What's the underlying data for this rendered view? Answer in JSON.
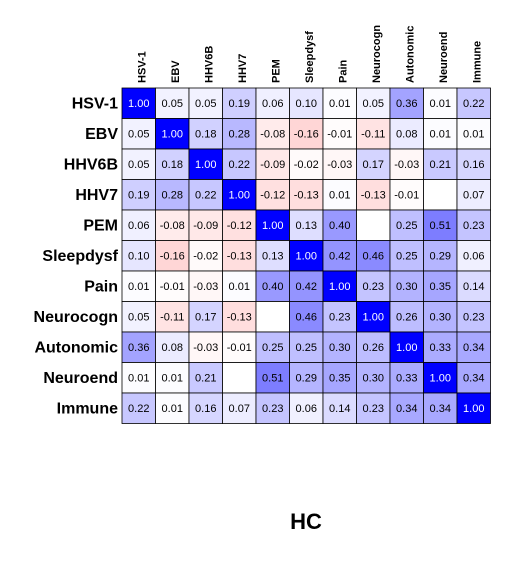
{
  "chart_data": {
    "type": "heatmap",
    "title": "HC",
    "x_categories": [
      "HSV-1",
      "EBV",
      "HHV6B",
      "HHV7",
      "PEM",
      "Sleepdysf",
      "Pain",
      "Neurocogn",
      "Autonomic",
      "Neuroend",
      "Immune"
    ],
    "y_categories": [
      "HSV-1",
      "EBV",
      "HHV6B",
      "HHV7",
      "PEM",
      "Sleepdysf",
      "Pain",
      "Neurocogn",
      "Autonomic",
      "Neuroend",
      "Immune"
    ],
    "values": [
      [
        1.0,
        0.05,
        0.05,
        0.19,
        0.06,
        0.1,
        0.01,
        0.05,
        0.36,
        0.01,
        0.22
      ],
      [
        0.05,
        1.0,
        0.18,
        0.28,
        -0.08,
        -0.16,
        -0.01,
        -0.11,
        0.08,
        0.01,
        0.01
      ],
      [
        0.05,
        0.18,
        1.0,
        0.22,
        -0.09,
        -0.02,
        -0.03,
        0.17,
        -0.03,
        0.21,
        0.16
      ],
      [
        0.19,
        0.28,
        0.22,
        1.0,
        -0.12,
        -0.13,
        0.01,
        -0.13,
        -0.01,
        null,
        0.07
      ],
      [
        0.06,
        -0.08,
        -0.09,
        -0.12,
        1.0,
        0.13,
        0.4,
        null,
        0.25,
        0.51,
        0.23
      ],
      [
        0.1,
        -0.16,
        -0.02,
        -0.13,
        0.13,
        1.0,
        0.42,
        0.46,
        0.25,
        0.29,
        0.06
      ],
      [
        0.01,
        -0.01,
        -0.03,
        0.01,
        0.4,
        0.42,
        1.0,
        0.23,
        0.3,
        0.35,
        0.14
      ],
      [
        0.05,
        -0.11,
        0.17,
        -0.13,
        null,
        0.46,
        0.23,
        1.0,
        0.26,
        0.3,
        0.23
      ],
      [
        0.36,
        0.08,
        -0.03,
        -0.01,
        0.25,
        0.25,
        0.3,
        0.26,
        1.0,
        0.33,
        0.34
      ],
      [
        0.01,
        0.01,
        0.21,
        null,
        0.51,
        0.29,
        0.35,
        0.3,
        0.33,
        1.0,
        0.34
      ],
      [
        0.22,
        0.01,
        0.16,
        0.07,
        0.23,
        0.06,
        0.14,
        0.23,
        0.34,
        0.34,
        1.0
      ]
    ],
    "value_labels": [
      [
        "1.00",
        "0.05",
        "0.05",
        "0.19",
        "0.06",
        "0.10",
        "0.01",
        "0.05",
        "0.36",
        "0.01",
        "0.22"
      ],
      [
        "0.05",
        "1.00",
        "0.18",
        "0.28",
        "-0.08",
        "-0.16",
        "-0.01",
        "-0.11",
        "0.08",
        "0.01",
        "0.01"
      ],
      [
        "0.05",
        "0.18",
        "1.00",
        "0.22",
        "-0.09",
        "-0.02",
        "-0.03",
        "0.17",
        "-0.03",
        "0.21",
        "0.16"
      ],
      [
        "0.19",
        "0.28",
        "0.22",
        "1.00",
        "-0.12",
        "-0.13",
        "0.01",
        "-0.13",
        "-0.01",
        null,
        "0.07"
      ],
      [
        "0.06",
        "-0.08",
        "-0.09",
        "-0.12",
        "1.00",
        "0.13",
        "0.40",
        null,
        "0.25",
        "0.51",
        "0.23"
      ],
      [
        "0.10",
        "-0.16",
        "-0.02",
        "-0.13",
        "0.13",
        "1.00",
        "0.42",
        "0.46",
        "0.25",
        "0.29",
        "0.06"
      ],
      [
        "0.01",
        "-0.01",
        "-0.03",
        "0.01",
        "0.40",
        "0.42",
        "1.00",
        "0.23",
        "0.30",
        "0.35",
        "0.14"
      ],
      [
        "0.05",
        "-0.11",
        "0.17",
        "-0.13",
        null,
        "0.46",
        "0.23",
        "1.00",
        "0.26",
        "0.30",
        "0.23"
      ],
      [
        "0.36",
        "0.08",
        "-0.03",
        "-0.01",
        "0.25",
        "0.25",
        "0.30",
        "0.26",
        "1.00",
        "0.33",
        "0.34"
      ],
      [
        "0.01",
        "0.01",
        "0.21",
        null,
        "0.51",
        "0.29",
        "0.35",
        "0.30",
        "0.33",
        "1.00",
        "0.34"
      ],
      [
        "0.22",
        "0.01",
        "0.16",
        "0.07",
        "0.23",
        "0.06",
        "0.14",
        "0.23",
        "0.34",
        "0.34",
        "1.00"
      ]
    ],
    "clim": [
      -1,
      1
    ],
    "colors": {
      "negative": "#ff0000",
      "zero": "#ffffff",
      "positive": "#0000ff"
    }
  }
}
